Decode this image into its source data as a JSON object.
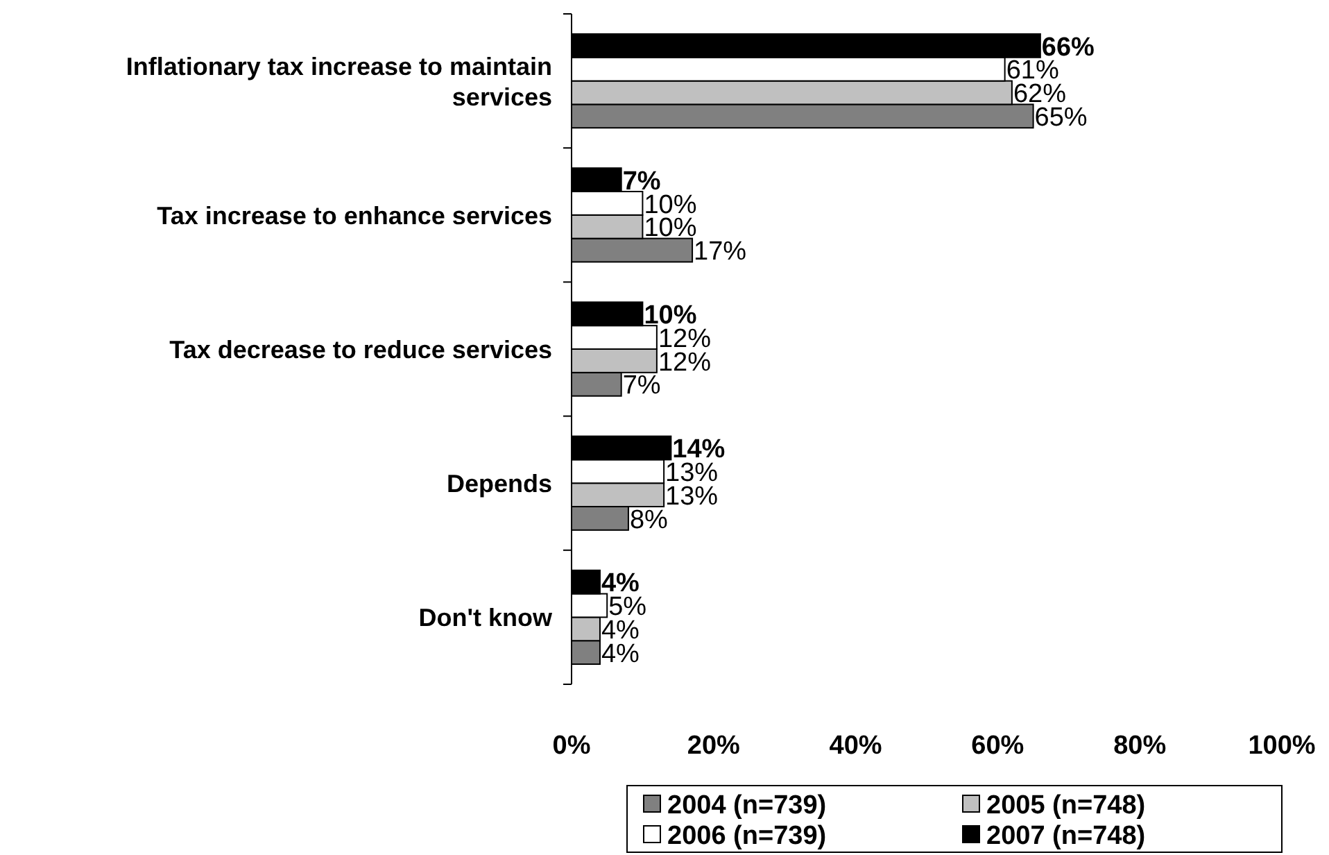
{
  "chart_data": {
    "type": "bar",
    "orientation": "horizontal",
    "categories": [
      "Inflationary tax increase to maintain services",
      "Tax increase to enhance services",
      "Tax decrease to reduce services",
      "Depends",
      "Don't know"
    ],
    "series": [
      {
        "name": "2004 (n=739)",
        "color": "#808080",
        "values": [
          65,
          17,
          7,
          8,
          4
        ],
        "value_labels": [
          "65%",
          "17%",
          "7%",
          "8%",
          "4%"
        ]
      },
      {
        "name": "2005 (n=748)",
        "color": "#c0c0c0",
        "values": [
          62,
          10,
          12,
          13,
          4
        ],
        "value_labels": [
          "62%",
          "10%",
          "12%",
          "13%",
          "4%"
        ]
      },
      {
        "name": "2006 (n=739)",
        "color": "#ffffff",
        "values": [
          61,
          10,
          12,
          13,
          5
        ],
        "value_labels": [
          "61%",
          "10%",
          "12%",
          "13%",
          "5%"
        ]
      },
      {
        "name": "2007 (n=748)",
        "color": "#000000",
        "values": [
          66,
          7,
          10,
          14,
          4
        ],
        "value_labels": [
          "66%",
          "7%",
          "10%",
          "14%",
          "4%"
        ]
      }
    ],
    "xlim": [
      0,
      100
    ],
    "xticks": [
      {
        "value": 0,
        "label": "0%"
      },
      {
        "value": 20,
        "label": "20%"
      },
      {
        "value": 40,
        "label": "40%"
      },
      {
        "value": 60,
        "label": "60%"
      },
      {
        "value": 80,
        "label": "80%"
      },
      {
        "value": 100,
        "label": "100%"
      }
    ],
    "grid": false,
    "legend": "bottom"
  }
}
